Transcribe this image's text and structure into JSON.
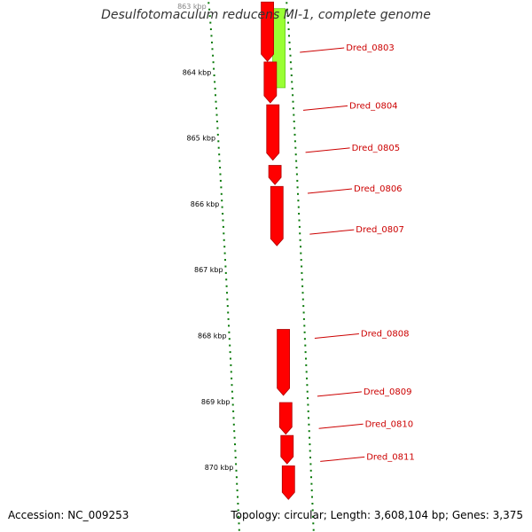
{
  "title": "Desulfotomaculum reducens MI-1, complete genome",
  "footer": {
    "accession": "Accession: NC_009253",
    "topology": "Topology: circular; Length: 3,608,104 bp; Genes: 3,375"
  },
  "colors": {
    "backbone": "#7a7a7a",
    "forward_gene": "#ff0000",
    "reverse_gene": "#99ff33",
    "tick": "#0a7a0a",
    "label_line": "#cc0000",
    "label_text": "#cc0000"
  },
  "diagram": {
    "kbp_labels": [
      {
        "text": "863 kbp",
        "kbp": 863
      },
      {
        "text": "864 kbp",
        "kbp": 864
      },
      {
        "text": "865 kbp",
        "kbp": 865
      },
      {
        "text": "866 kbp",
        "kbp": 866
      },
      {
        "text": "867 kbp",
        "kbp": 867
      },
      {
        "text": "868 kbp",
        "kbp": 868
      },
      {
        "text": "869 kbp",
        "kbp": 869
      },
      {
        "text": "870 kbp",
        "kbp": 870
      }
    ],
    "forward_genes": [
      {
        "start": 862.95,
        "end": 863.85
      },
      {
        "start": 863.86,
        "end": 864.48
      },
      {
        "start": 864.51,
        "end": 865.35
      },
      {
        "start": 865.43,
        "end": 865.72
      },
      {
        "start": 865.75,
        "end": 866.65
      },
      {
        "start": 867.92,
        "end": 868.92
      },
      {
        "start": 869.03,
        "end": 869.51
      },
      {
        "start": 869.53,
        "end": 869.96
      },
      {
        "start": 869.99,
        "end": 870.5
      }
    ],
    "reverse_genes": [
      {
        "start": 863.05,
        "end": 864.25
      }
    ],
    "gene_labels": [
      {
        "text": "Dred_0803",
        "kbp": 863.7
      },
      {
        "text": "Dred_0804",
        "kbp": 864.58
      },
      {
        "text": "Dred_0805",
        "kbp": 865.22
      },
      {
        "text": "Dred_0806",
        "kbp": 865.84
      },
      {
        "text": "Dred_0807",
        "kbp": 866.46
      },
      {
        "text": "Dred_0808",
        "kbp": 868.04
      },
      {
        "text": "Dred_0809",
        "kbp": 868.92
      },
      {
        "text": "Dred_0810",
        "kbp": 869.41
      },
      {
        "text": "Dred_0811",
        "kbp": 869.91
      }
    ]
  }
}
